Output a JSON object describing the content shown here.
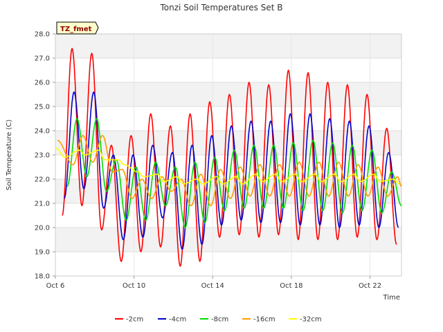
{
  "chart_data": {
    "type": "line",
    "title": "Tonzi Soil Temperatures Set B",
    "xlabel": "Time",
    "ylabel": "Soil Temperature (C)",
    "badge": "TZ_fmet",
    "xlim": [
      0,
      17.6
    ],
    "ylim": [
      18.0,
      28.0
    ],
    "x_ticks": [
      {
        "value": 0,
        "label": "Oct 6"
      },
      {
        "value": 4,
        "label": "Oct 10"
      },
      {
        "value": 8,
        "label": "Oct 14"
      },
      {
        "value": 12,
        "label": "Oct 18"
      },
      {
        "value": 16,
        "label": "Oct 22"
      }
    ],
    "y_ticks": [
      18.0,
      19.0,
      20.0,
      21.0,
      22.0,
      23.0,
      24.0,
      25.0,
      26.0,
      27.0,
      28.0
    ],
    "grid": true,
    "legend_position": "bottom",
    "series": [
      {
        "name": "-2cm",
        "color": "#ff0000",
        "min_days": [
          6.35,
          7.35,
          8.35,
          9.35,
          10.35,
          11.35,
          12.35,
          13.35,
          14.35,
          15.35,
          16.35,
          17.35
        ],
        "min_values": [
          20.5,
          20.9,
          19.9,
          18.6,
          19.0,
          19.2,
          18.4,
          18.6,
          19.6,
          19.7,
          19.6,
          19.7,
          19.5,
          19.5,
          19.5,
          19.6,
          19.5,
          19.3
        ],
        "min_days_full": [
          0.35,
          1.35,
          2.35,
          3.35,
          4.35,
          5.35,
          6.35,
          7.35,
          8.35,
          9.35,
          10.35,
          11.35,
          12.35,
          13.35,
          14.35,
          15.35,
          16.35,
          17.35
        ],
        "max_days": [
          0.85,
          1.85,
          2.85,
          3.85,
          4.85,
          5.85,
          6.85,
          7.85,
          8.85,
          9.85,
          10.85,
          11.85,
          12.85,
          13.85,
          14.85,
          15.85,
          16.85
        ],
        "max_values": [
          27.4,
          27.2,
          23.4,
          23.8,
          24.7,
          24.2,
          24.7,
          25.2,
          25.5,
          26.0,
          25.9,
          26.5,
          26.4,
          26.0,
          25.9,
          25.5,
          24.1
        ]
      },
      {
        "name": "-4cm",
        "color": "#0000cc",
        "min_days_full": [
          0.45,
          1.45,
          2.45,
          3.45,
          4.45,
          5.45,
          6.45,
          7.45,
          8.45,
          9.45,
          10.45,
          11.45,
          12.45,
          13.45,
          14.45,
          15.45,
          16.45,
          17.45
        ],
        "min_values": [
          21.2,
          21.6,
          20.8,
          19.5,
          19.6,
          20.4,
          19.1,
          19.3,
          20.1,
          20.3,
          20.2,
          20.2,
          20.1,
          20.1,
          20.0,
          20.1,
          20.0,
          20.0
        ],
        "max_days": [
          0.95,
          1.95,
          2.95,
          3.95,
          4.95,
          5.95,
          6.95,
          7.95,
          8.95,
          9.95,
          10.95,
          11.95,
          12.95,
          13.95,
          14.95,
          15.95,
          16.95
        ],
        "max_values": [
          25.6,
          25.6,
          23.0,
          23.0,
          23.4,
          23.1,
          23.4,
          23.8,
          24.2,
          24.4,
          24.4,
          24.7,
          24.7,
          24.5,
          24.4,
          24.2,
          23.1
        ]
      },
      {
        "name": "-8cm",
        "color": "#00dd00",
        "min_days_full": [
          0.6,
          1.6,
          2.6,
          3.6,
          4.6,
          5.6,
          6.6,
          7.6,
          8.6,
          9.6,
          10.6,
          11.6,
          12.6,
          13.6,
          14.6,
          15.6,
          16.6,
          17.6
        ],
        "min_values": [
          21.7,
          22.1,
          21.5,
          20.3,
          20.3,
          20.9,
          20.0,
          20.2,
          20.7,
          20.8,
          20.8,
          20.8,
          20.7,
          20.7,
          20.6,
          20.7,
          20.6,
          20.9
        ],
        "max_days": [
          1.1,
          2.1,
          3.1,
          4.1,
          5.1,
          6.1,
          7.1,
          8.1,
          9.1,
          10.1,
          11.1,
          12.1,
          13.1,
          14.1,
          15.1,
          16.1,
          17.1
        ],
        "max_values": [
          24.5,
          24.5,
          22.8,
          22.5,
          22.7,
          22.5,
          22.7,
          22.9,
          23.2,
          23.4,
          23.4,
          23.5,
          23.6,
          23.5,
          23.4,
          23.2,
          22.3
        ]
      },
      {
        "name": "-16cm",
        "color": "#ff9900",
        "min_days_full": [
          0.9,
          1.9,
          2.9,
          3.9,
          4.9,
          5.9,
          6.9,
          7.9,
          8.9,
          9.9,
          10.9,
          11.9,
          12.9,
          13.9,
          14.9,
          15.9,
          16.9,
          17.6
        ],
        "min_values": [
          22.6,
          22.7,
          22.3,
          21.2,
          21.2,
          21.5,
          20.9,
          20.9,
          21.2,
          21.3,
          21.3,
          21.3,
          21.3,
          21.3,
          21.3,
          21.3,
          21.3,
          21.7
        ],
        "max_days": [
          0.1,
          1.4,
          2.4,
          3.4,
          4.4,
          5.4,
          6.4,
          7.4,
          8.4,
          9.4,
          10.4,
          11.4,
          12.4,
          13.4,
          14.4,
          15.4,
          16.4,
          17.4
        ],
        "max_values": [
          23.6,
          23.8,
          23.8,
          22.4,
          22.0,
          22.1,
          22.0,
          22.2,
          22.4,
          22.5,
          22.6,
          22.6,
          22.7,
          22.7,
          22.7,
          22.6,
          22.5,
          22.1
        ]
      },
      {
        "name": "-32cm",
        "color": "#ffff00",
        "min_days_full": [
          0.5,
          1.5,
          2.5,
          3.5,
          4.5,
          5.5,
          6.5,
          7.5,
          8.5,
          9.5,
          10.5,
          11.5,
          12.5,
          13.5,
          14.5,
          15.5,
          16.5,
          17.5
        ],
        "min_values": [
          22.9,
          23.0,
          22.8,
          22.6,
          22.1,
          21.9,
          21.8,
          21.8,
          21.8,
          21.8,
          21.9,
          21.9,
          21.9,
          21.9,
          21.9,
          21.9,
          21.9,
          21.8
        ],
        "max_days": [
          0.0,
          1.2,
          2.2,
          3.2,
          4.2,
          5.2,
          6.2,
          7.2,
          8.2,
          9.2,
          10.2,
          11.2,
          12.2,
          13.2,
          14.2,
          15.2,
          16.2,
          17.2
        ],
        "max_values": [
          23.3,
          23.2,
          23.2,
          22.8,
          22.3,
          22.2,
          22.1,
          22.0,
          22.1,
          22.1,
          22.2,
          22.2,
          22.2,
          22.2,
          22.2,
          22.2,
          22.2,
          22.0
        ]
      }
    ]
  }
}
